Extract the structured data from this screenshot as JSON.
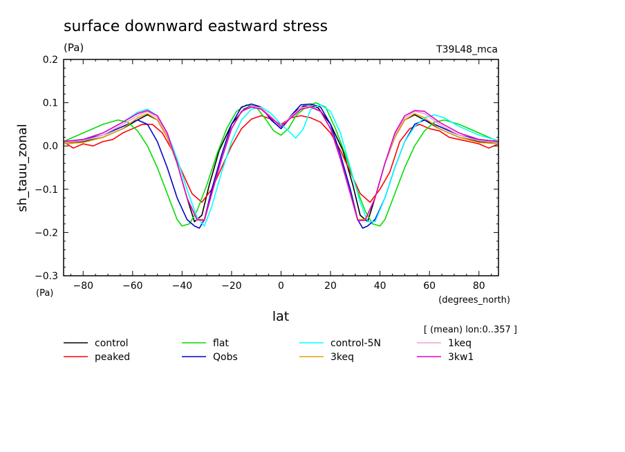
{
  "header": {
    "title": "surface downward eastward stress",
    "units": "(Pa)",
    "experiment": "T39L48_mca"
  },
  "axes": {
    "y_unit_label": "(Pa)",
    "x_unit_label": "(degrees_north)",
    "x_title": "lat",
    "y_title": "sh_tauu_zonal"
  },
  "note": "[ (mean) lon:0..357 ]",
  "chart_data": {
    "type": "line",
    "title": "surface downward eastward stress",
    "xlabel": "lat",
    "ylabel": "sh_tauu_zonal",
    "xlim": [
      -87.9,
      87.9
    ],
    "ylim": [
      -0.3,
      0.2
    ],
    "x_ticks": [
      -80,
      -60,
      -40,
      -20,
      0,
      20,
      40,
      60,
      80
    ],
    "x_tick_labels": [
      "−80",
      "−60",
      "−40",
      "−20",
      "0",
      "20",
      "40",
      "60",
      "80"
    ],
    "y_ticks": [
      -0.3,
      -0.2,
      -0.1,
      0.0,
      0.1,
      0.2
    ],
    "y_tick_labels": [
      "−0.3",
      "−0.2",
      "−0.1",
      "0.0",
      "0.1",
      "0.2"
    ],
    "grid": false,
    "legend_position": "bottom",
    "series": [
      {
        "name": "control",
        "color": "#000000",
        "x": [
          -88,
          -80,
          -72,
          -64,
          -58,
          -54,
          -50,
          -46,
          -42,
          -38,
          -35,
          -32,
          -29,
          -25,
          -20,
          -15,
          -12,
          -9,
          -6,
          -3,
          0,
          3,
          6,
          9,
          12,
          15,
          20,
          25,
          29,
          32,
          35,
          38,
          42,
          46,
          50,
          54,
          58,
          64,
          72,
          80,
          88
        ],
        "y": [
          0.008,
          0.01,
          0.02,
          0.04,
          0.06,
          0.072,
          0.06,
          0.02,
          -0.04,
          -0.12,
          -0.175,
          -0.16,
          -0.09,
          -0.01,
          0.05,
          0.085,
          0.093,
          0.09,
          0.075,
          0.055,
          0.04,
          0.06,
          0.08,
          0.092,
          0.093,
          0.088,
          0.05,
          -0.01,
          -0.09,
          -0.16,
          -0.175,
          -0.12,
          -0.04,
          0.02,
          0.06,
          0.072,
          0.06,
          0.04,
          0.02,
          0.01,
          0.008
        ]
      },
      {
        "name": "peaked",
        "color": "#ff0000",
        "x": [
          -88,
          -84,
          -80,
          -76,
          -72,
          -68,
          -64,
          -60,
          -56,
          -52,
          -48,
          -44,
          -40,
          -36,
          -32,
          -28,
          -24,
          -20,
          -16,
          -12,
          -8,
          -4,
          0,
          4,
          8,
          12,
          16,
          20,
          24,
          28,
          32,
          36,
          40,
          44,
          48,
          52,
          56,
          60,
          64,
          68,
          72,
          76,
          80,
          84,
          88
        ],
        "y": [
          0.01,
          -0.005,
          0.005,
          0.0,
          0.01,
          0.015,
          0.03,
          0.04,
          0.05,
          0.05,
          0.03,
          -0.01,
          -0.06,
          -0.11,
          -0.13,
          -0.1,
          -0.05,
          0.0,
          0.04,
          0.062,
          0.07,
          0.062,
          0.05,
          0.065,
          0.07,
          0.065,
          0.055,
          0.03,
          -0.01,
          -0.06,
          -0.11,
          -0.13,
          -0.1,
          -0.06,
          0.01,
          0.04,
          0.05,
          0.04,
          0.035,
          0.02,
          0.015,
          0.01,
          0.005,
          -0.005,
          0.005
        ]
      },
      {
        "name": "flat",
        "color": "#00dd00",
        "x": [
          -88,
          -80,
          -72,
          -66,
          -62,
          -58,
          -54,
          -50,
          -46,
          -42,
          -40,
          -37,
          -34,
          -30,
          -26,
          -22,
          -18,
          -14,
          -10,
          -6,
          -3,
          0,
          3,
          6,
          10,
          14,
          18,
          22,
          26,
          30,
          34,
          37,
          40,
          42,
          46,
          50,
          54,
          58,
          62,
          66,
          72,
          80,
          88
        ],
        "y": [
          0.01,
          0.03,
          0.05,
          0.06,
          0.055,
          0.035,
          0.0,
          -0.05,
          -0.11,
          -0.17,
          -0.185,
          -0.18,
          -0.15,
          -0.09,
          -0.02,
          0.04,
          0.08,
          0.095,
          0.09,
          0.06,
          0.035,
          0.025,
          0.04,
          0.07,
          0.09,
          0.1,
          0.09,
          0.04,
          -0.02,
          -0.09,
          -0.15,
          -0.18,
          -0.185,
          -0.17,
          -0.11,
          -0.05,
          0.0,
          0.035,
          0.055,
          0.06,
          0.05,
          0.03,
          0.01
        ]
      },
      {
        "name": "Qobs",
        "color": "#0000cc",
        "x": [
          -88,
          -80,
          -72,
          -64,
          -58,
          -54,
          -50,
          -46,
          -42,
          -38,
          -35,
          -33,
          -31,
          -28,
          -24,
          -20,
          -16,
          -12,
          -8,
          -4,
          0,
          4,
          8,
          12,
          16,
          20,
          24,
          28,
          31,
          33,
          35,
          38,
          42,
          46,
          50,
          54,
          58,
          64,
          72,
          80,
          88
        ],
        "y": [
          0.01,
          0.015,
          0.025,
          0.045,
          0.06,
          0.05,
          0.01,
          -0.05,
          -0.12,
          -0.17,
          -0.185,
          -0.19,
          -0.17,
          -0.1,
          -0.02,
          0.05,
          0.09,
          0.097,
          0.09,
          0.06,
          0.04,
          0.07,
          0.095,
          0.097,
          0.09,
          0.05,
          -0.02,
          -0.1,
          -0.17,
          -0.19,
          -0.185,
          -0.17,
          -0.12,
          -0.05,
          0.01,
          0.05,
          0.06,
          0.045,
          0.025,
          0.015,
          0.01
        ]
      },
      {
        "name": "control-5N",
        "color": "#00ffff",
        "x": [
          -88,
          -80,
          -72,
          -64,
          -58,
          -54,
          -50,
          -46,
          -42,
          -38,
          -34,
          -31,
          -28,
          -24,
          -20,
          -16,
          -12,
          -8,
          -4,
          0,
          3,
          6,
          9,
          12,
          16,
          20,
          24,
          28,
          32,
          35,
          38,
          42,
          46,
          50,
          54,
          58,
          62,
          66,
          72,
          80,
          88
        ],
        "y": [
          0.008,
          0.015,
          0.03,
          0.055,
          0.078,
          0.085,
          0.07,
          0.03,
          -0.03,
          -0.1,
          -0.165,
          -0.185,
          -0.14,
          -0.06,
          0.01,
          0.06,
          0.085,
          0.09,
          0.075,
          0.05,
          0.035,
          0.018,
          0.04,
          0.085,
          0.095,
          0.08,
          0.03,
          -0.05,
          -0.13,
          -0.175,
          -0.175,
          -0.12,
          -0.05,
          0.01,
          0.045,
          0.065,
          0.072,
          0.065,
          0.045,
          0.025,
          0.012
        ]
      },
      {
        "name": "3keq",
        "color": "#e0a000",
        "x": [
          -88,
          -80,
          -72,
          -64,
          -58,
          -54,
          -50,
          -46,
          -42,
          -38,
          -34,
          -31,
          -28,
          -24,
          -20,
          -16,
          -12,
          -8,
          -4,
          0,
          4,
          8,
          12,
          16,
          20,
          24,
          28,
          31,
          34,
          38,
          42,
          46,
          50,
          54,
          58,
          64,
          72,
          80,
          88
        ],
        "y": [
          0.005,
          0.008,
          0.02,
          0.04,
          0.065,
          0.075,
          0.06,
          0.02,
          -0.04,
          -0.12,
          -0.17,
          -0.17,
          -0.11,
          -0.03,
          0.04,
          0.08,
          0.09,
          0.085,
          0.065,
          0.045,
          0.065,
          0.085,
          0.09,
          0.08,
          0.04,
          -0.03,
          -0.11,
          -0.17,
          -0.17,
          -0.12,
          -0.04,
          0.02,
          0.06,
          0.075,
          0.065,
          0.04,
          0.02,
          0.008,
          0.005
        ]
      },
      {
        "name": "1keq",
        "color": "#f0a0d8",
        "x": [
          -88,
          -80,
          -72,
          -64,
          -58,
          -54,
          -50,
          -46,
          -42,
          -38,
          -34,
          -31,
          -28,
          -24,
          -20,
          -16,
          -12,
          -8,
          -4,
          0,
          4,
          8,
          12,
          16,
          20,
          24,
          28,
          31,
          34,
          38,
          42,
          46,
          50,
          54,
          58,
          64,
          72,
          80,
          88
        ],
        "y": [
          0.008,
          0.012,
          0.025,
          0.05,
          0.07,
          0.08,
          0.065,
          0.025,
          -0.04,
          -0.12,
          -0.172,
          -0.172,
          -0.11,
          -0.03,
          0.04,
          0.08,
          0.092,
          0.088,
          0.068,
          0.045,
          0.068,
          0.088,
          0.092,
          0.08,
          0.04,
          -0.03,
          -0.11,
          -0.172,
          -0.172,
          -0.12,
          -0.04,
          0.025,
          0.065,
          0.08,
          0.075,
          0.05,
          0.025,
          0.012,
          0.008
        ]
      },
      {
        "name": "3kw1",
        "color": "#e000c0",
        "x": [
          -88,
          -80,
          -72,
          -64,
          -58,
          -54,
          -50,
          -46,
          -42,
          -38,
          -34,
          -31,
          -28,
          -24,
          -20,
          -16,
          -12,
          -8,
          -4,
          0,
          4,
          8,
          12,
          16,
          20,
          24,
          28,
          31,
          34,
          38,
          42,
          46,
          50,
          54,
          58,
          64,
          72,
          80,
          88
        ],
        "y": [
          0.01,
          0.015,
          0.03,
          0.055,
          0.075,
          0.082,
          0.07,
          0.03,
          -0.04,
          -0.12,
          -0.17,
          -0.172,
          -0.11,
          -0.03,
          0.04,
          0.08,
          0.09,
          0.085,
          0.065,
          0.045,
          0.065,
          0.085,
          0.09,
          0.08,
          0.04,
          -0.03,
          -0.11,
          -0.172,
          -0.172,
          -0.12,
          -0.04,
          0.03,
          0.07,
          0.082,
          0.08,
          0.055,
          0.03,
          0.015,
          0.01
        ]
      }
    ]
  }
}
